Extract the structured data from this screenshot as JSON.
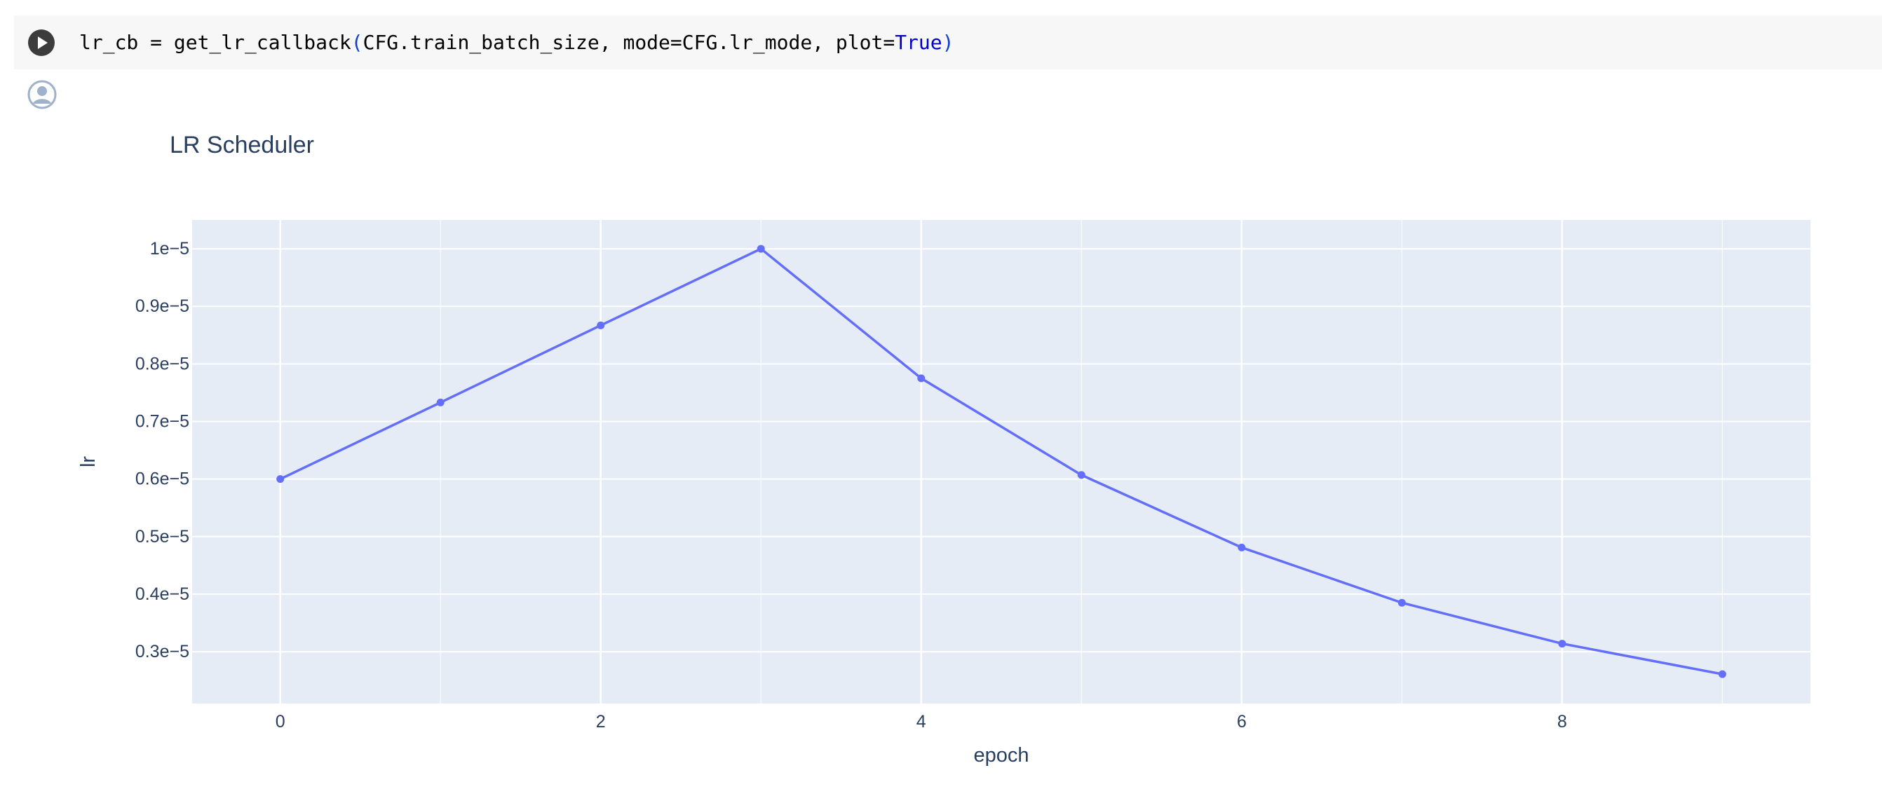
{
  "cell": {
    "code": {
      "prefix": "lr_cb = get_lr_callback",
      "open_paren": "(",
      "args": "CFG.train_batch_size, mode=CFG.lr_mode, plot=",
      "true_kw": "True",
      "close_paren": ")"
    },
    "run_icon": "play-icon",
    "output_icon": "user-avatar-icon"
  },
  "colors": {
    "plot_bg": "#e5ecf6",
    "line": "#636efa",
    "grid": "#ffffff",
    "text": "#2a3f5f"
  },
  "chart_data": {
    "type": "line",
    "title": "LR Scheduler",
    "xlabel": "epoch",
    "ylabel": "lr",
    "x": [
      0,
      1,
      2,
      3,
      4,
      5,
      6,
      7,
      8,
      9
    ],
    "series": [
      {
        "values": [
          6e-06,
          7.33e-06,
          8.67e-06,
          1e-05,
          7.75e-06,
          6.07e-06,
          4.81e-06,
          3.85e-06,
          3.14e-06,
          2.61e-06
        ]
      }
    ],
    "xlim": [
      -0.55,
      9.55
    ],
    "ylim": [
      2.1e-06,
      1.05e-05
    ],
    "xticks": [
      0,
      2,
      4,
      6,
      8
    ],
    "xtick_labels": [
      "0",
      "2",
      "4",
      "6",
      "8"
    ],
    "yticks": [
      1e-05,
      9e-06,
      8e-06,
      7e-06,
      6e-06,
      5e-06,
      4e-06,
      3e-06
    ],
    "ytick_labels": [
      "1e−5",
      "0.9e−5",
      "0.8e−5",
      "0.7e−5",
      "0.6e−5",
      "0.5e−5",
      "0.4e−5",
      "0.3e−5"
    ],
    "grid": true,
    "markers": true
  }
}
